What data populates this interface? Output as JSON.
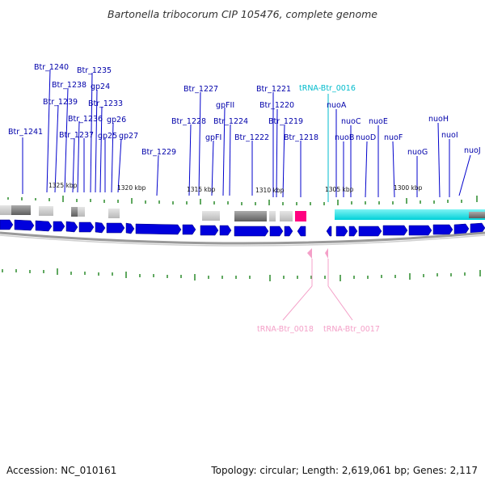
{
  "title": "Bartonella tribocorum CIP 105476, complete genome",
  "footer": {
    "accession": "Accession: NC_010161",
    "summary": "Topology: circular; Length: 2,619,061 bp; Genes: 2,117"
  },
  "colors": {
    "cds": "#0000dd",
    "trna_label": "#f4a0c8",
    "trna16": "#00bbcc",
    "gene_label": "#0000aa",
    "tick_green": "#2a8a2a"
  },
  "kbp_labels": [
    "1325 kbp",
    "1320 kbp",
    "1315 kbp",
    "1310 kbp",
    "1305 kbp",
    "1300 kbp"
  ],
  "gene_labels": [
    "Btr_1240",
    "Btr_1235",
    "Btr_1238",
    "gp24",
    "Btr_1239",
    "Btr_1233",
    "Btr_1236",
    "gp26",
    "Btr_1241",
    "Btr_1237",
    "gp25",
    "gp27",
    "Btr_1229",
    "Btr_1227",
    "gpFII",
    "Btr_1228",
    "Btr_1224",
    "gpFI",
    "Btr_1222",
    "Btr_1221",
    "Btr_1220",
    "Btr_1219",
    "Btr_1218",
    "tRNA-Btr_0016",
    "nuoA",
    "nuoC",
    "nuoB",
    "nuoE",
    "nuoD",
    "nuoF",
    "nuoH",
    "nuoG",
    "nuoI",
    "nuoJ"
  ],
  "trna_labels": [
    "tRNA-Btr_0018",
    "tRNA-Btr_0017"
  ]
}
